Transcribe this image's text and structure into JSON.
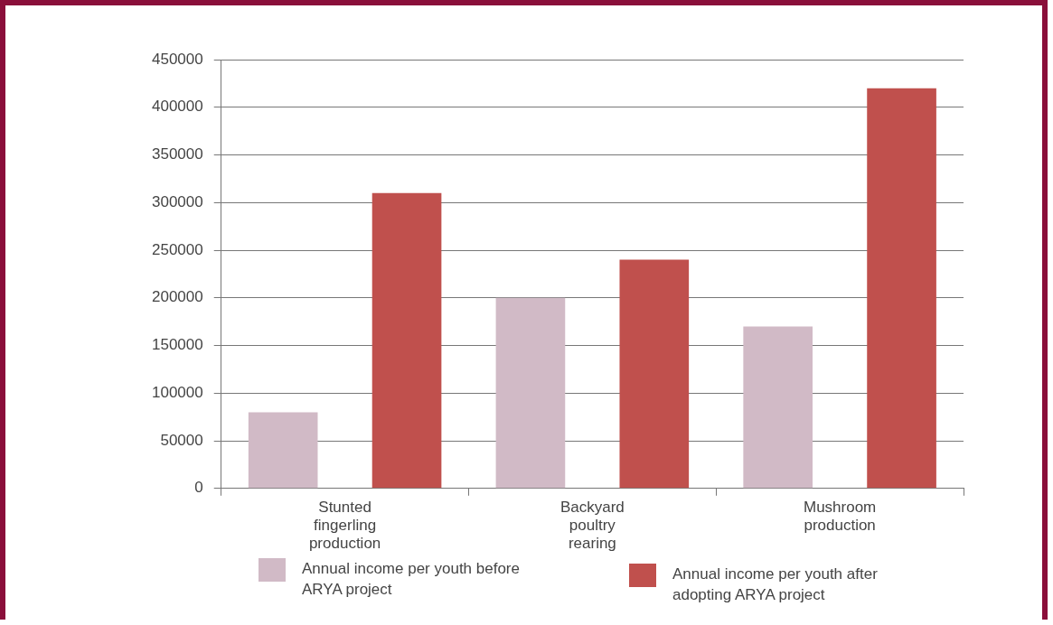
{
  "chart_data": {
    "type": "bar",
    "categories": [
      "Stunted fingerling production",
      "Backyard poultry rearing",
      "Mushroom production"
    ],
    "series": [
      {
        "name": "Annual income per youth before ARYA project",
        "color": "#d1bac6",
        "values": [
          80000,
          200000,
          170000
        ]
      },
      {
        "name": "Annual income per youth after adopting ARYA project",
        "color": "#c0504d",
        "values": [
          310000,
          240000,
          420000
        ]
      }
    ],
    "ylim": [
      0,
      450000
    ],
    "yticks": [
      0,
      50000,
      100000,
      150000,
      200000,
      250000,
      300000,
      350000,
      400000,
      450000
    ],
    "grid": "y",
    "legend": "bottom"
  }
}
